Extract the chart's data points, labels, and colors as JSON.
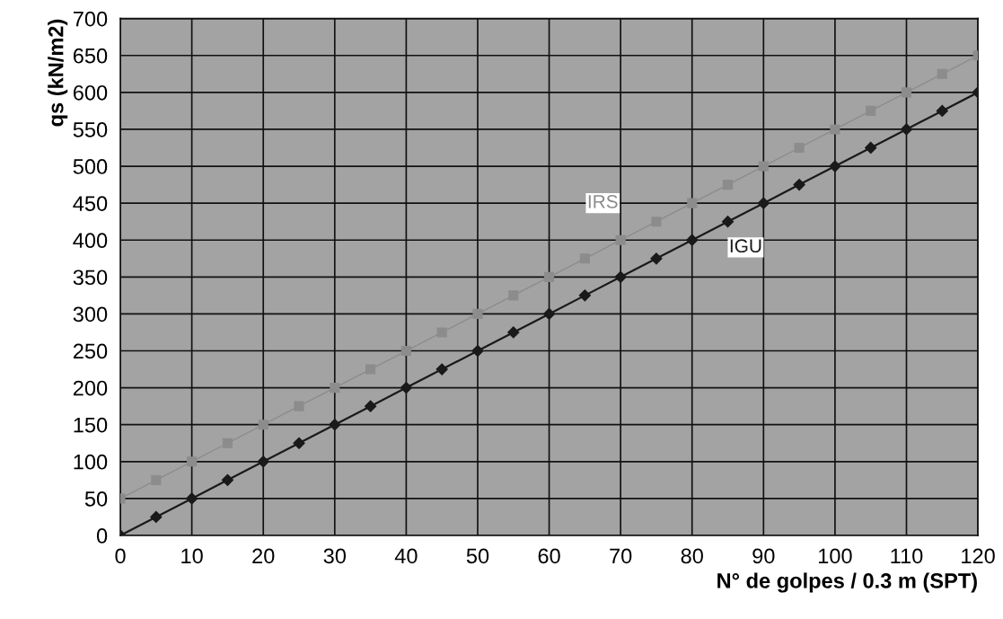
{
  "chart_data": {
    "type": "line",
    "xlabel": "N° de golpes / 0.3 m (SPT)",
    "ylabel": "qs (kN/m2)",
    "x": [
      0,
      5,
      10,
      15,
      20,
      25,
      30,
      35,
      40,
      45,
      50,
      55,
      60,
      65,
      70,
      75,
      80,
      85,
      90,
      95,
      100,
      105,
      110,
      115,
      120
    ],
    "series": [
      {
        "name": "IRS",
        "color": "#8c8c8c",
        "marker": "square",
        "values": [
          50,
          75,
          100,
          125,
          150,
          175,
          200,
          225,
          250,
          275,
          300,
          325,
          350,
          375,
          400,
          425,
          450,
          475,
          500,
          525,
          550,
          575,
          600,
          625,
          650
        ]
      },
      {
        "name": "IGU",
        "color": "#1a1a1a",
        "marker": "diamond",
        "values": [
          0,
          25,
          50,
          75,
          100,
          125,
          150,
          175,
          200,
          225,
          250,
          275,
          300,
          325,
          350,
          375,
          400,
          425,
          450,
          475,
          500,
          525,
          550,
          575,
          600
        ]
      }
    ],
    "xlim": [
      0,
      120
    ],
    "xticks": [
      0,
      10,
      20,
      30,
      40,
      50,
      60,
      70,
      80,
      90,
      100,
      110,
      120
    ],
    "ylim": [
      0,
      700
    ],
    "yticks": [
      0,
      50,
      100,
      150,
      200,
      250,
      300,
      350,
      400,
      450,
      500,
      550,
      600,
      650,
      700
    ],
    "grid": true,
    "line_style": "solid"
  }
}
